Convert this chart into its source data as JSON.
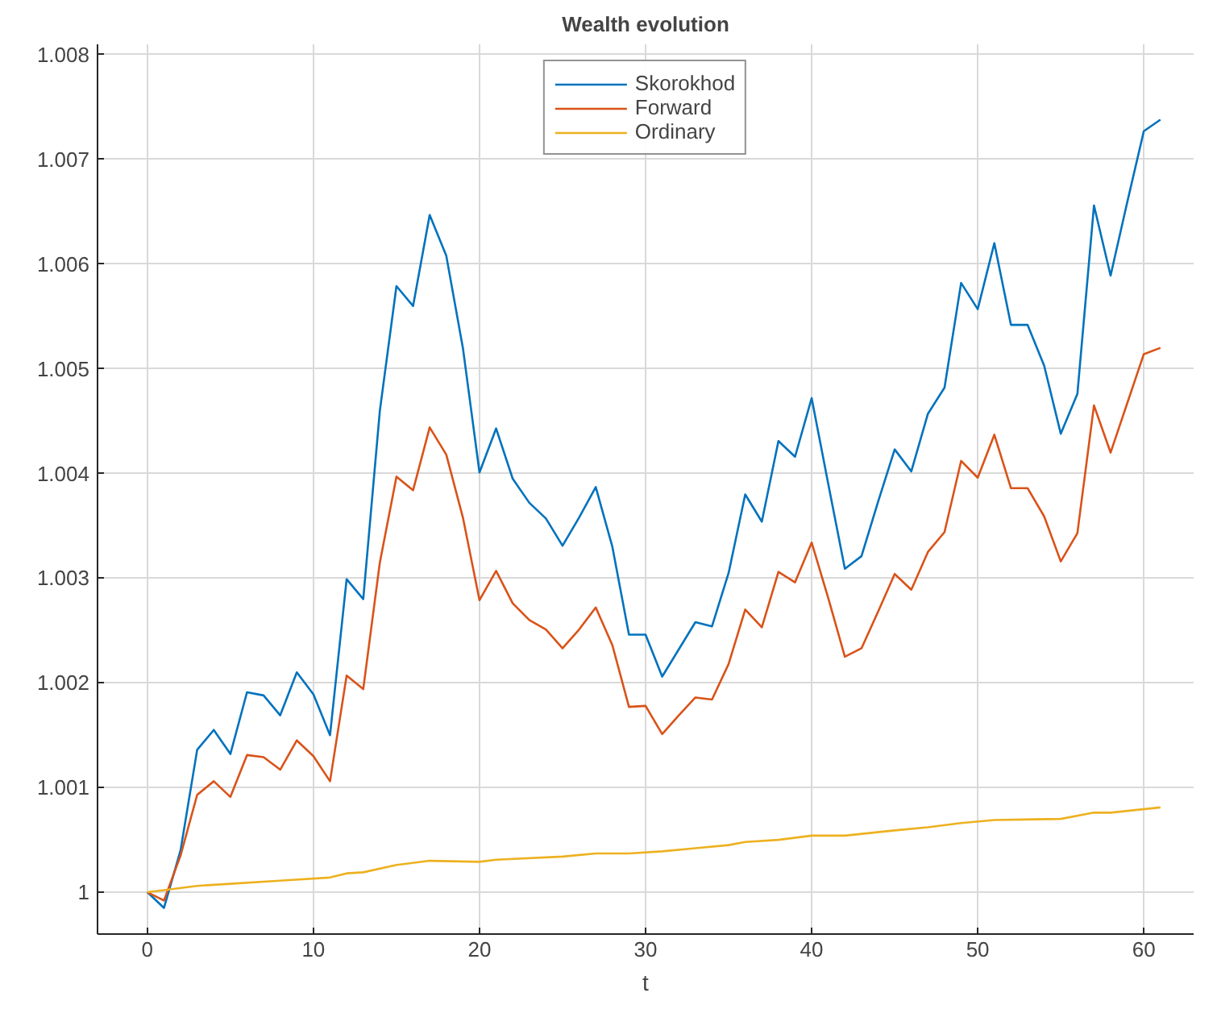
{
  "chart_data": {
    "type": "line",
    "title": "Wealth evolution",
    "xlabel": "t",
    "xlim": [
      -3,
      63
    ],
    "xticks": [
      0,
      10,
      20,
      30,
      40,
      50,
      60
    ],
    "ylim": [
      0.9996,
      1.0081
    ],
    "yticks": [
      1,
      1.001,
      1.002,
      1.003,
      1.004,
      1.005,
      1.006,
      1.007,
      1.008
    ],
    "grid": true,
    "legend": "top",
    "line_style": "solid",
    "series": [
      {
        "name": "Skorokhod",
        "color": "#0072bd",
        "x": [
          0,
          1,
          2,
          3,
          4,
          5,
          6,
          7,
          8,
          9,
          10,
          11,
          12,
          13,
          14,
          15,
          16,
          17,
          18,
          19,
          20,
          21,
          22,
          23,
          24,
          25,
          26,
          27,
          28,
          29,
          30,
          31,
          32,
          33,
          34,
          35,
          36,
          37,
          38,
          39,
          40,
          41,
          42,
          43,
          44,
          45,
          46,
          47,
          48,
          49,
          50,
          51,
          52,
          53,
          54,
          55,
          56,
          57,
          58,
          59,
          60,
          61
        ],
        "values": [
          1.0,
          0.99985,
          1.0004,
          1.00136,
          1.00155,
          1.00132,
          1.00191,
          1.00188,
          1.00169,
          1.0021,
          1.00189,
          1.0015,
          1.00299,
          1.0028,
          1.0046,
          1.00579,
          1.0056,
          1.00647,
          1.00608,
          1.0052,
          1.00401,
          1.00443,
          1.00395,
          1.00372,
          1.00357,
          1.00331,
          1.00358,
          1.00387,
          1.0033,
          1.00246,
          1.00246,
          1.00206,
          1.00232,
          1.00258,
          1.00254,
          1.00305,
          1.0038,
          1.00354,
          1.00431,
          1.00416,
          1.00472,
          1.0039,
          1.00309,
          1.00321,
          1.00373,
          1.00423,
          1.00402,
          1.00457,
          1.00482,
          1.00582,
          1.00557,
          1.0062,
          1.00542,
          1.00542,
          1.00503,
          1.00438,
          1.00476,
          1.00656,
          1.00589,
          1.00659,
          1.00727,
          1.00738
        ]
      },
      {
        "name": "Forward",
        "color": "#d95319",
        "x": [
          0,
          1,
          2,
          3,
          4,
          5,
          6,
          7,
          8,
          9,
          10,
          11,
          12,
          13,
          14,
          15,
          16,
          17,
          18,
          19,
          20,
          21,
          22,
          23,
          24,
          25,
          26,
          27,
          28,
          29,
          30,
          31,
          32,
          33,
          34,
          35,
          36,
          37,
          38,
          39,
          40,
          41,
          42,
          43,
          44,
          45,
          46,
          47,
          48,
          49,
          50,
          51,
          52,
          53,
          54,
          55,
          56,
          57,
          58,
          59,
          60,
          61
        ],
        "values": [
          1.0,
          0.99992,
          1.00035,
          1.00093,
          1.00106,
          1.00091,
          1.00131,
          1.00129,
          1.00117,
          1.00145,
          1.0013,
          1.00106,
          1.00207,
          1.00194,
          1.00315,
          1.00397,
          1.00384,
          1.00444,
          1.00418,
          1.00358,
          1.00279,
          1.00307,
          1.00276,
          1.0026,
          1.00251,
          1.00233,
          1.00251,
          1.00272,
          1.00236,
          1.00177,
          1.00178,
          1.00151,
          1.00169,
          1.00186,
          1.00184,
          1.00218,
          1.0027,
          1.00253,
          1.00306,
          1.00296,
          1.00334,
          1.00281,
          1.00225,
          1.00233,
          1.00268,
          1.00304,
          1.00289,
          1.00325,
          1.00344,
          1.00412,
          1.00396,
          1.00437,
          1.00386,
          1.00386,
          1.00359,
          1.00316,
          1.00343,
          1.00465,
          1.0042,
          1.00467,
          1.00514,
          1.0052
        ]
      },
      {
        "name": "Ordinary",
        "color": "#edb120",
        "x": [
          0,
          1,
          3,
          5,
          8,
          11,
          12,
          13,
          15,
          17,
          20,
          21,
          25,
          27,
          29,
          31,
          33,
          35,
          36,
          38,
          40,
          42,
          45,
          47,
          49,
          51,
          55,
          57,
          58,
          61
        ],
        "values": [
          1.0,
          1.00002,
          1.00006,
          1.00008,
          1.00011,
          1.00014,
          1.00018,
          1.00019,
          1.00026,
          1.0003,
          1.00029,
          1.00031,
          1.00034,
          1.00037,
          1.00037,
          1.00039,
          1.00042,
          1.00045,
          1.00048,
          1.0005,
          1.00054,
          1.00054,
          1.00059,
          1.00062,
          1.00066,
          1.00069,
          1.0007,
          1.00076,
          1.00076,
          1.00081
        ]
      }
    ]
  }
}
